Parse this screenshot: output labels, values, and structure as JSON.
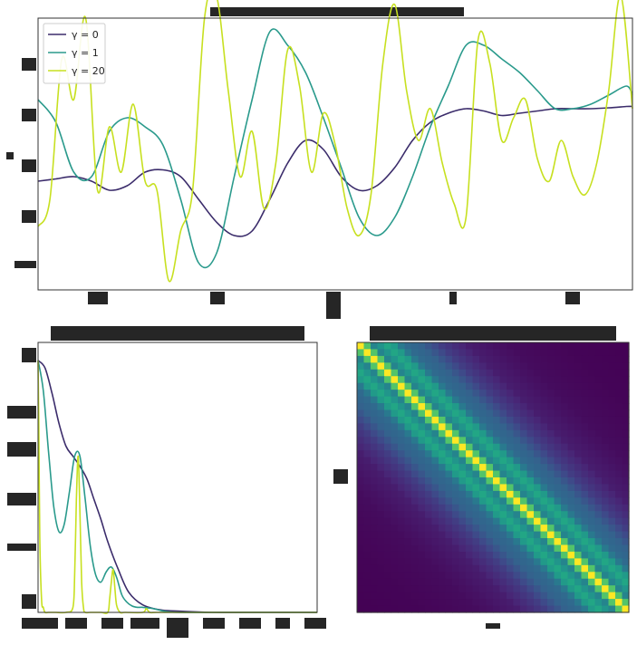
{
  "chart_data": [
    {
      "id": "samples",
      "type": "line",
      "title": "",
      "xlabel": "",
      "ylabel": "",
      "xlim": [
        0,
        100
      ],
      "ylim": [
        -3,
        3
      ],
      "legend_position": "top-left",
      "series": [
        {
          "name": "γ = 0",
          "color": "#3b2c6b",
          "x": [
            0,
            3,
            6,
            9,
            12,
            15,
            18,
            21,
            24,
            27,
            30,
            33,
            36,
            39,
            42,
            45,
            48,
            51,
            54,
            57,
            60,
            63,
            66,
            69,
            72,
            75,
            78,
            81,
            84,
            87,
            90,
            93,
            96,
            99,
            100
          ],
          "y": [
            -0.6,
            -0.55,
            -0.5,
            -0.6,
            -0.8,
            -0.7,
            -0.4,
            -0.35,
            -0.5,
            -1.0,
            -1.5,
            -1.8,
            -1.7,
            -1.0,
            -0.2,
            0.3,
            0.1,
            -0.5,
            -0.8,
            -0.7,
            -0.3,
            0.3,
            0.7,
            0.9,
            1.0,
            0.95,
            0.85,
            0.9,
            0.95,
            1.0,
            1.0,
            1.0,
            1.02,
            1.05,
            1.05
          ]
        },
        {
          "name": "γ = 1",
          "color": "#2a9a8c",
          "x": [
            0,
            3,
            6,
            9,
            12,
            15,
            18,
            21,
            24,
            27,
            30,
            33,
            36,
            39,
            42,
            45,
            48,
            51,
            54,
            57,
            60,
            63,
            66,
            69,
            72,
            75,
            78,
            81,
            84,
            87,
            90,
            93,
            96,
            99,
            100
          ],
          "y": [
            1.2,
            0.7,
            -0.4,
            -0.5,
            0.5,
            0.8,
            0.6,
            0.2,
            -1.0,
            -2.4,
            -2.2,
            -0.5,
            1.2,
            2.7,
            2.4,
            1.8,
            0.8,
            -0.3,
            -1.4,
            -1.8,
            -1.4,
            -0.5,
            0.6,
            1.5,
            2.4,
            2.4,
            2.1,
            1.8,
            1.4,
            1.0,
            1.0,
            1.1,
            1.3,
            1.5,
            1.3
          ]
        },
        {
          "name": "γ = 20",
          "color": "#c7e020",
          "x": [
            0,
            2,
            4,
            6,
            8,
            10,
            12,
            14,
            16,
            18,
            20,
            22,
            24,
            26,
            28,
            30,
            32,
            34,
            36,
            38,
            40,
            42,
            44,
            46,
            48,
            50,
            52,
            54,
            56,
            58,
            60,
            62,
            64,
            66,
            68,
            70,
            72,
            74,
            76,
            78,
            80,
            82,
            84,
            86,
            88,
            90,
            92,
            94,
            96,
            98,
            100
          ],
          "y": [
            -1.6,
            -1.0,
            2.1,
            1.2,
            3.0,
            -0.8,
            0.6,
            -0.4,
            1.1,
            -0.6,
            -0.8,
            -2.8,
            -1.7,
            -0.8,
            3.0,
            3.5,
            1.4,
            -0.5,
            0.5,
            -1.2,
            -0.2,
            2.3,
            1.5,
            -0.4,
            0.9,
            0.2,
            -1.2,
            -1.8,
            -0.9,
            2.0,
            3.3,
            1.4,
            0.3,
            1.0,
            -0.2,
            -1.1,
            -1.4,
            2.5,
            2.0,
            0.3,
            0.8,
            1.2,
            -0.1,
            -0.6,
            0.3,
            -0.5,
            -0.9,
            -0.2,
            1.4,
            3.5,
            1.0
          ]
        }
      ]
    },
    {
      "id": "spectrum",
      "type": "line",
      "title": "",
      "xlabel": "",
      "ylabel": "",
      "xlim": [
        0,
        8
      ],
      "ylim": [
        0,
        1.05
      ],
      "series": [
        {
          "name": "γ = 0",
          "color": "#3b2c6b",
          "x": [
            0,
            0.2,
            0.4,
            0.6,
            0.8,
            1.0,
            1.2,
            1.4,
            1.6,
            1.8,
            2.0,
            2.3,
            2.6,
            3.0,
            3.5,
            4.0,
            5.0,
            6.0,
            7.0,
            8.0
          ],
          "y": [
            1.0,
            0.97,
            0.87,
            0.75,
            0.66,
            0.62,
            0.58,
            0.53,
            0.45,
            0.37,
            0.28,
            0.17,
            0.08,
            0.03,
            0.01,
            0.005,
            0.0,
            0.0,
            0.0,
            0.0
          ]
        },
        {
          "name": "γ = 1",
          "color": "#2a9a8c",
          "x": [
            0,
            0.15,
            0.3,
            0.45,
            0.6,
            0.75,
            0.9,
            1.05,
            1.2,
            1.35,
            1.5,
            1.65,
            1.8,
            1.95,
            2.1,
            2.25,
            2.4,
            2.55,
            2.7,
            2.85,
            3.0,
            3.3,
            3.6,
            4.0,
            5.0,
            6.0,
            8.0
          ],
          "y": [
            1.0,
            0.88,
            0.64,
            0.42,
            0.32,
            0.35,
            0.48,
            0.62,
            0.62,
            0.45,
            0.26,
            0.15,
            0.12,
            0.16,
            0.18,
            0.14,
            0.07,
            0.04,
            0.025,
            0.02,
            0.02,
            0.015,
            0.005,
            0.0,
            0.0,
            0.0,
            0.0
          ]
        },
        {
          "name": "γ = 20",
          "color": "#c7e020",
          "x": [
            0,
            0.02,
            0.05,
            0.1,
            0.15,
            0.2,
            0.3,
            0.5,
            0.8,
            1.0,
            1.05,
            1.1,
            1.15,
            1.2,
            1.25,
            1.3,
            1.35,
            1.5,
            1.8,
            2.0,
            2.05,
            2.1,
            2.15,
            2.2,
            2.25,
            2.35,
            2.5,
            3.0,
            3.1,
            3.2,
            3.4,
            4.0,
            6.0,
            8.0
          ],
          "y": [
            1.0,
            0.75,
            0.3,
            0.05,
            0.02,
            0.0,
            0.0,
            0.0,
            0.0,
            0.02,
            0.15,
            0.45,
            0.62,
            0.4,
            0.12,
            0.02,
            0.0,
            0.0,
            0.0,
            0.0,
            0.05,
            0.12,
            0.17,
            0.1,
            0.03,
            0.0,
            0.0,
            0.0,
            0.015,
            0.0,
            0.0,
            0.0,
            0.0,
            0.0
          ]
        }
      ]
    },
    {
      "id": "covariance",
      "type": "heatmap",
      "title": "",
      "colormap": "viridis",
      "matrix_size": 40,
      "band_profile": {
        "lag_fraction": [
          0.0,
          0.05,
          0.11,
          0.16,
          0.22,
          0.3,
          0.4,
          0.55,
          0.75,
          1.0
        ],
        "value": [
          1.0,
          0.45,
          0.62,
          0.35,
          0.32,
          0.18,
          0.08,
          0.03,
          0.01,
          0.0
        ]
      }
    }
  ]
}
